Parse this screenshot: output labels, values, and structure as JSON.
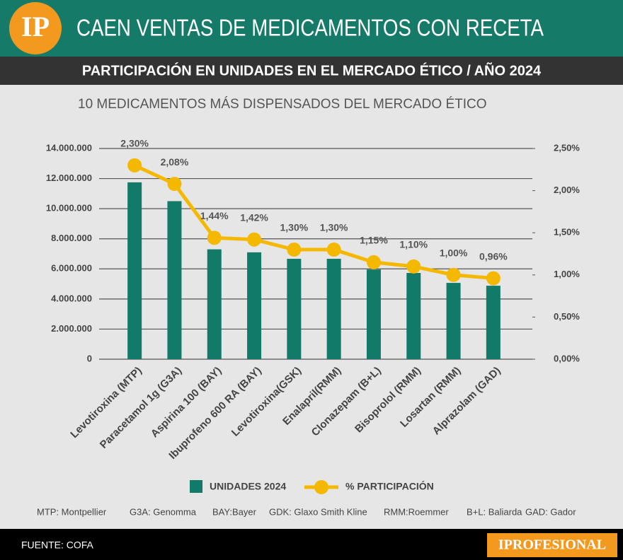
{
  "header": {
    "logo": "IP",
    "title": "CAEN VENTAS DE MEDICAMENTOS CON RECETA",
    "subtitle": "PARTICIPACIÓN EN UNIDADES EN EL MERCADO ÉTICO / AÑO 2024"
  },
  "chart_data": {
    "type": "bar",
    "title": "10 MEDICAMENTOS MÁS DISPENSADOS DEL MERCADO ÉTICO",
    "categories": [
      "Levotiroxina (MTP)",
      "Paracetamol 1g (G3A)",
      "Aspirina 100 (BAY)",
      "Ibuprofeno 600 RA (BAY)",
      "Levotiroxina(GSK)",
      "Enalapril(RMM)",
      "Clonazepam (B+L)",
      "Bisoprolol (RMM)",
      "Losartan (RMM)",
      "Alprazolam (GAD)"
    ],
    "series": [
      {
        "name": "UNIDADES 2024",
        "color": "#127a68",
        "values": [
          11750000,
          10500000,
          7300000,
          7100000,
          6670000,
          6670000,
          5960000,
          5730000,
          5070000,
          4880000
        ]
      },
      {
        "name": "% PARTICIPACIÓN",
        "color": "#f5b800",
        "type": "line",
        "axis": "y2",
        "values": [
          2.3,
          2.08,
          1.44,
          1.42,
          1.3,
          1.3,
          1.15,
          1.1,
          1.0,
          0.96
        ],
        "value_labels": [
          "2,30%",
          "2,08%",
          "1,44%",
          "1,42%",
          "1,30%",
          "1,30%",
          "1,15%",
          "1,10%",
          "1,00%",
          "0,96%"
        ]
      }
    ],
    "ylim": [
      0,
      14000000
    ],
    "yticks": [
      0,
      {
        "value": 2000000,
        "label": "2.000.000"
      },
      {
        "value": 4000000,
        "label": "4.000.000"
      },
      {
        "value": 6000000,
        "label": "6.000.000"
      },
      {
        "value": 8000000,
        "label": "8.000.000"
      },
      {
        "value": 10000000,
        "label": "10.000.000"
      },
      {
        "value": 12000000,
        "label": "12.000.000"
      },
      {
        "value": 14000000,
        "label": "14.000.000"
      }
    ],
    "y2lim": [
      0,
      2.5
    ],
    "y2ticks": [
      {
        "value": 0,
        "label": "0,00%"
      },
      {
        "value": 0.5,
        "label": "0,50%"
      },
      {
        "value": 1,
        "label": "1,00%"
      },
      {
        "value": 1.5,
        "label": "1,50%"
      },
      {
        "value": 2,
        "label": "2,00%"
      },
      {
        "value": 2.5,
        "label": "2,50%"
      }
    ],
    "grid": true
  },
  "notes": [
    "MTP: Montpellier",
    "G3A: Genomma",
    "BAY:Bayer",
    "GDK: Glaxo Smith Kline",
    "RMM:Roemmer",
    "B+L: Baliarda",
    "GAD: Gador"
  ],
  "footer": {
    "source": "FUENTE: COFA",
    "brand": "IPROFESIONAL"
  }
}
